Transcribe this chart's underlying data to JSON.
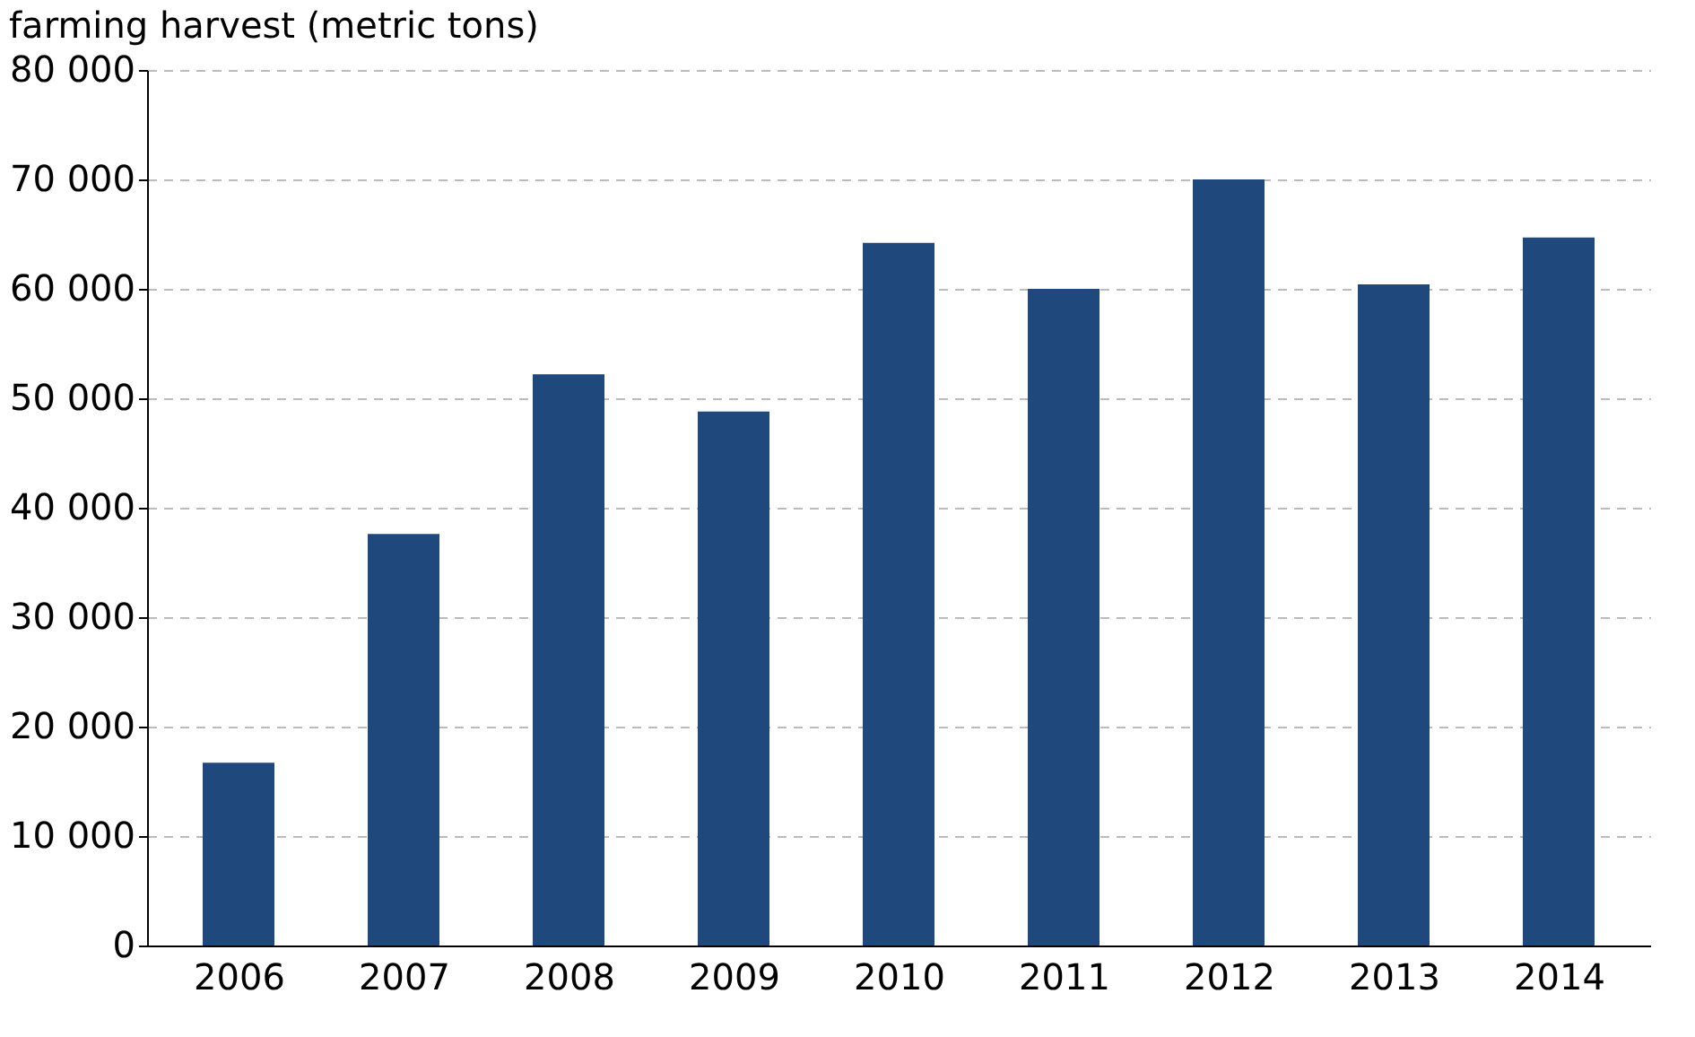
{
  "chart_data": {
    "type": "bar",
    "title": "farming harvest (metric tons)",
    "categories": [
      "2006",
      "2007",
      "2008",
      "2009",
      "2010",
      "2011",
      "2012",
      "2013",
      "2014"
    ],
    "values": [
      16700,
      37600,
      52200,
      48800,
      64200,
      60000,
      70000,
      60400,
      64700
    ],
    "color": "#1f497d",
    "ylim": [
      0,
      80000
    ],
    "yticks": [
      {
        "value": 0,
        "label": "0"
      },
      {
        "value": 10000,
        "label": "10 000"
      },
      {
        "value": 20000,
        "label": "20 000"
      },
      {
        "value": 30000,
        "label": "30 000"
      },
      {
        "value": 40000,
        "label": "40 000"
      },
      {
        "value": 50000,
        "label": "50 000"
      },
      {
        "value": 60000,
        "label": "60 000"
      },
      {
        "value": 70000,
        "label": "70 000"
      },
      {
        "value": 80000,
        "label": "80 000"
      }
    ],
    "grid": "y"
  }
}
